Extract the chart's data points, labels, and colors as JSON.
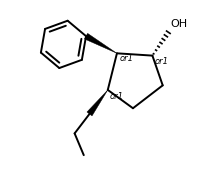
{
  "bg_color": "#ffffff",
  "line_color": "#000000",
  "lw": 1.4,
  "fig_width": 2.11,
  "fig_height": 1.73,
  "dpi": 100,
  "oh_label": "OH",
  "or1": "or1",
  "font_size": 6.5
}
